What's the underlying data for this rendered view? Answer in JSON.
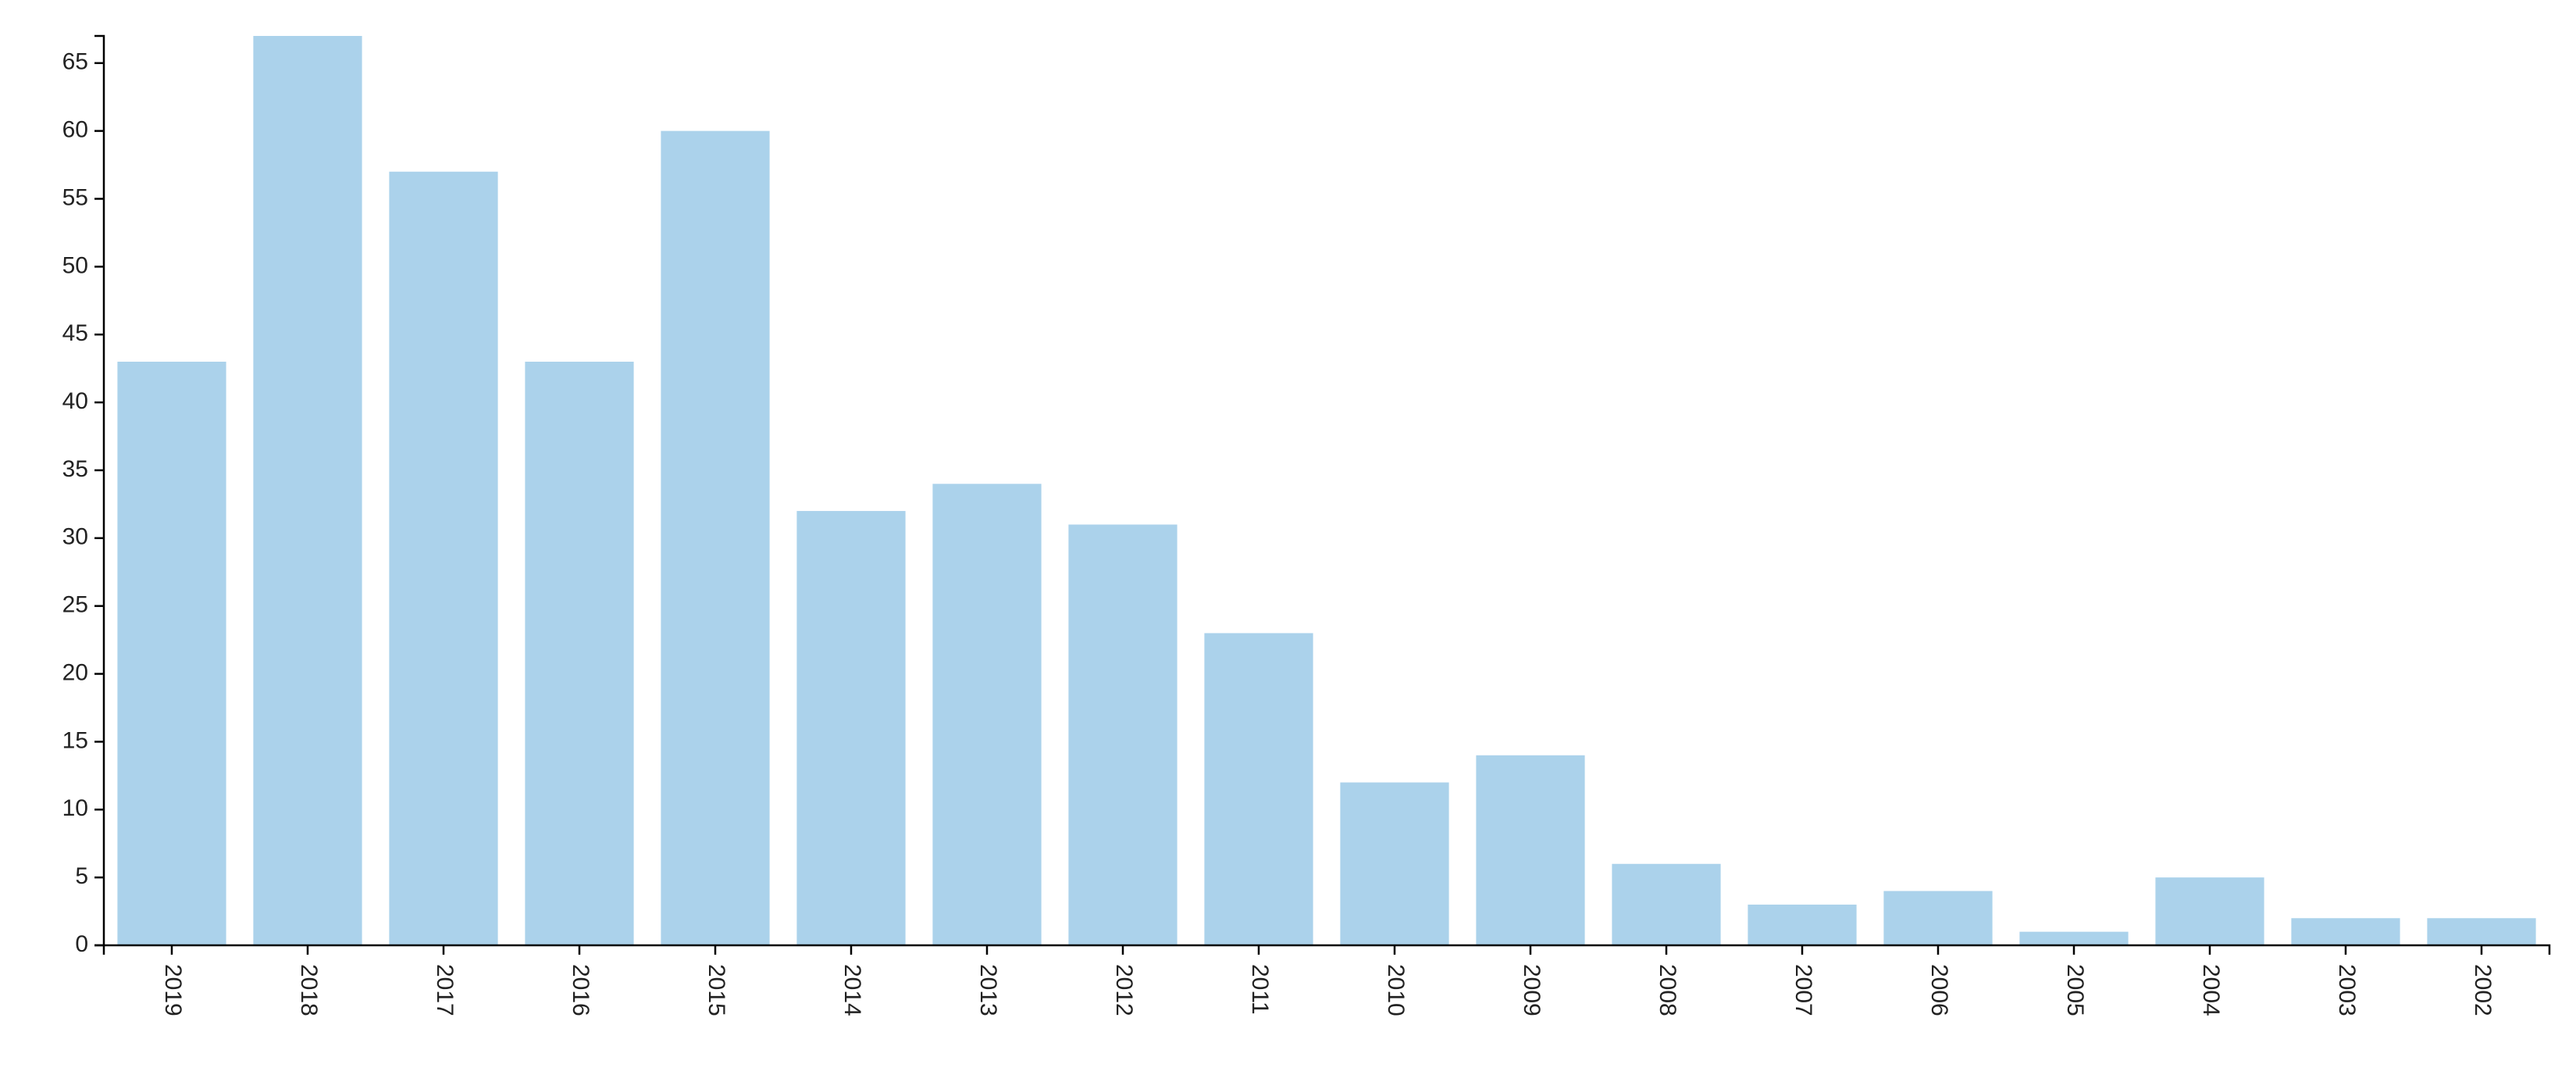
{
  "chart_data": {
    "type": "bar",
    "categories": [
      "2019",
      "2018",
      "2017",
      "2016",
      "2015",
      "2014",
      "2013",
      "2012",
      "2011",
      "2010",
      "2009",
      "2008",
      "2007",
      "2006",
      "2005",
      "2004",
      "2003",
      "2002"
    ],
    "values": [
      43,
      67,
      57,
      43,
      60,
      32,
      34,
      31,
      23,
      12,
      14,
      6,
      3,
      4,
      1,
      5,
      2,
      2
    ],
    "color": "#abd2eb",
    "ylim": [
      0,
      67
    ],
    "yticks": [
      0,
      5,
      10,
      15,
      20,
      25,
      30,
      35,
      40,
      45,
      50,
      55,
      60,
      65
    ],
    "grid": false
  }
}
